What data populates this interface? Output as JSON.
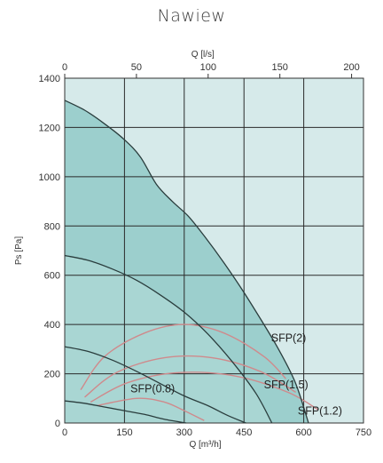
{
  "page": {
    "title": "Nawiew"
  },
  "chart_data": {
    "type": "line",
    "title": "",
    "xlabel_bottom": "Q [m³/h]",
    "xlabel_top": "Q [l/s]",
    "ylabel": "Ps [Pa]",
    "xlim_bottom": [
      0,
      750
    ],
    "xlim_top": [
      0,
      208.3
    ],
    "ylim": [
      0,
      1400
    ],
    "x_ticks_bottom": [
      "0",
      "150",
      "300",
      "450",
      "600",
      "750"
    ],
    "x_ticks_top": [
      "0",
      "50",
      "100",
      "150",
      "200"
    ],
    "y_ticks": [
      "0",
      "200",
      "400",
      "600",
      "800",
      "1000",
      "1200",
      "1400"
    ],
    "grid": true,
    "fan_curves": [
      {
        "x": [
          0,
          50,
          100,
          150,
          190,
          230,
          270,
          310,
          350,
          400,
          450,
          500,
          540,
          580,
          612
        ],
        "y": [
          1310,
          1270,
          1215,
          1150,
          1080,
          970,
          900,
          840,
          760,
          650,
          530,
          400,
          290,
          160,
          0
        ]
      },
      {
        "x": [
          0,
          60,
          120,
          180,
          240,
          300,
          360,
          420,
          480,
          520
        ],
        "y": [
          680,
          660,
          625,
          580,
          520,
          450,
          360,
          250,
          120,
          0
        ]
      },
      {
        "x": [
          0,
          60,
          120,
          180,
          240,
          300,
          360,
          410,
          455
        ],
        "y": [
          310,
          290,
          255,
          210,
          160,
          110,
          70,
          30,
          0
        ]
      },
      {
        "x": [
          0,
          50,
          100,
          150,
          200,
          250,
          305
        ],
        "y": [
          90,
          80,
          65,
          50,
          35,
          15,
          0
        ]
      }
    ],
    "sfp_curves": [
      {
        "name": "SFP(2)",
        "x": [
          40,
          100,
          200,
          300,
          400,
          500,
          555
        ],
        "y": [
          135,
          270,
          365,
          400,
          365,
          270,
          180
        ]
      },
      {
        "name": "SFP(1.5)",
        "x": [
          50,
          130,
          250,
          370,
          490,
          580
        ],
        "y": [
          105,
          205,
          265,
          265,
          210,
          125
        ]
      },
      {
        "name": "SFP(1.2)",
        "x": [
          65,
          160,
          290,
          430,
          560,
          635
        ],
        "y": [
          85,
          165,
          205,
          190,
          125,
          55
        ]
      },
      {
        "name": "SFP(0.8)",
        "x": [
          80,
          180,
          250,
          300,
          350
        ],
        "y": [
          70,
          100,
          85,
          50,
          10
        ]
      }
    ],
    "annotations": [
      {
        "text": "SFP(2)",
        "x": 518,
        "y": 330
      },
      {
        "text": "SFP(1.5)",
        "x": 500,
        "y": 140
      },
      {
        "text": "SFP(1.2)",
        "x": 585,
        "y": 35
      },
      {
        "text": "SFP(0.8)",
        "x": 165,
        "y": 125
      }
    ],
    "colors": {
      "plot_background": "#d6eaea",
      "operating_area": "#9ccfcd",
      "inner_area": "#a9d6d3",
      "fan_curve": "#2a3d3d",
      "sfp_curve": "#cf8a8c",
      "grid": "#2a2a2a"
    }
  }
}
